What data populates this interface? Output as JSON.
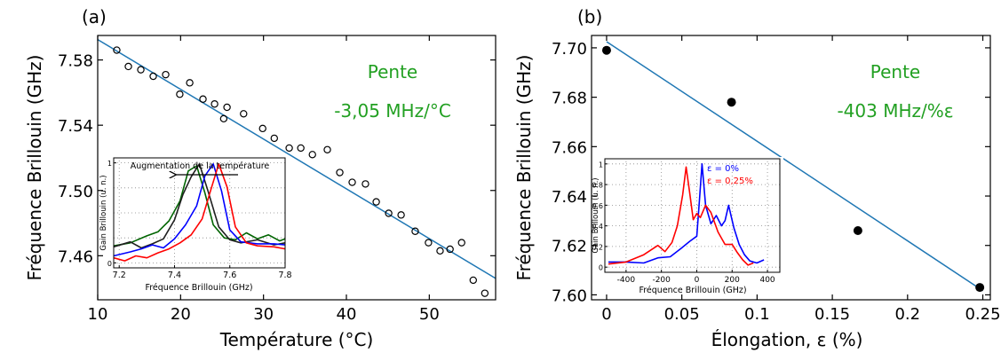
{
  "colors": {
    "fit": "#1f77b4",
    "annotation": "#22a022",
    "black": "#000000",
    "blue": "#0000ff",
    "red": "#ff0000",
    "green": "#006400",
    "gray": "#202020"
  },
  "chart_data": [
    {
      "id": "a",
      "type": "scatter",
      "panel_label": "(a)",
      "xlabel": "Température (°C)",
      "ylabel": "Fréquence Brillouin (GHz)",
      "xlim": [
        10,
        58
      ],
      "ylim": [
        7.433,
        7.595
      ],
      "xticks": [
        10,
        20,
        30,
        40,
        50
      ],
      "xtick_labels": [
        "10",
        "20",
        "30",
        "40",
        "50"
      ],
      "yticks": [
        7.46,
        7.5,
        7.54,
        7.58
      ],
      "ytick_labels": [
        "7.46",
        "7.50",
        "7.54",
        "7.58"
      ],
      "marker": "open-circle",
      "grid": false,
      "annotation": [
        "Pente",
        "-3,05 MHz/°C"
      ],
      "fit": {
        "x": [
          10,
          58
        ],
        "y": [
          7.5925,
          7.4461
        ]
      },
      "points": {
        "x": [
          12.3,
          13.7,
          15.2,
          16.7,
          18.2,
          19.9,
          21.1,
          22.7,
          24.1,
          25.2,
          25.6,
          27.6,
          29.9,
          31.3,
          33.1,
          34.5,
          35.9,
          37.7,
          39.2,
          40.7,
          42.3,
          43.6,
          45.1,
          46.6,
          48.3,
          49.9,
          51.3,
          52.5,
          53.9,
          55.3,
          56.7
        ],
        "y": [
          7.586,
          7.576,
          7.574,
          7.57,
          7.571,
          7.559,
          7.566,
          7.556,
          7.553,
          7.544,
          7.551,
          7.547,
          7.538,
          7.532,
          7.526,
          7.526,
          7.522,
          7.525,
          7.511,
          7.505,
          7.504,
          7.493,
          7.486,
          7.485,
          7.475,
          7.468,
          7.463,
          7.464,
          7.468,
          7.445,
          7.437
        ]
      },
      "inset": {
        "type": "line",
        "xlabel": "Fréquence Brillouin (GHz)",
        "ylabel": "Gain Brillouin (u. n.)",
        "xlim": [
          7.18,
          7.8
        ],
        "ylim": [
          -0.05,
          1.05
        ],
        "xticks": [
          7.2,
          7.4,
          7.6,
          7.8
        ],
        "xtick_labels": [
          "7.2",
          "7.4",
          "7.6",
          "7.8"
        ],
        "yticks": [
          0,
          1
        ],
        "ytick_labels": [
          "0",
          "1"
        ],
        "grid": true,
        "arrow_label": "Augmentation de la température",
        "series": [
          {
            "color": "#006400",
            "x": [
              7.18,
              7.24,
              7.3,
              7.34,
              7.38,
              7.42,
              7.45,
              7.48,
              7.51,
              7.54,
              7.58,
              7.62,
              7.66,
              7.7,
              7.74,
              7.78,
              7.8
            ],
            "y": [
              0.17,
              0.2,
              0.27,
              0.31,
              0.42,
              0.62,
              0.92,
              0.97,
              0.7,
              0.38,
              0.25,
              0.23,
              0.3,
              0.24,
              0.28,
              0.22,
              0.24
            ]
          },
          {
            "color": "#202020",
            "x": [
              7.18,
              7.24,
              7.28,
              7.32,
              7.36,
              7.4,
              7.43,
              7.46,
              7.49,
              7.52,
              7.56,
              7.6,
              7.64,
              7.7,
              7.76,
              7.8
            ],
            "y": [
              0.16,
              0.21,
              0.15,
              0.19,
              0.24,
              0.43,
              0.68,
              0.86,
              0.99,
              0.73,
              0.36,
              0.23,
              0.2,
              0.23,
              0.18,
              0.2
            ]
          },
          {
            "color": "#0000ff",
            "x": [
              7.18,
              7.24,
              7.28,
              7.32,
              7.36,
              7.4,
              7.44,
              7.48,
              7.51,
              7.54,
              7.57,
              7.6,
              7.64,
              7.7,
              7.76,
              7.8
            ],
            "y": [
              0.07,
              0.11,
              0.14,
              0.18,
              0.15,
              0.24,
              0.38,
              0.57,
              0.87,
              0.99,
              0.72,
              0.33,
              0.21,
              0.19,
              0.19,
              0.18
            ]
          },
          {
            "color": "#ff0000",
            "x": [
              7.18,
              7.22,
              7.26,
              7.3,
              7.34,
              7.38,
              7.42,
              7.46,
              7.5,
              7.53,
              7.56,
              7.59,
              7.62,
              7.66,
              7.7,
              7.76,
              7.8
            ],
            "y": [
              0.05,
              0.02,
              0.07,
              0.05,
              0.1,
              0.14,
              0.2,
              0.28,
              0.44,
              0.72,
              0.99,
              0.76,
              0.36,
              0.2,
              0.17,
              0.16,
              0.14
            ]
          }
        ]
      }
    },
    {
      "id": "b",
      "type": "scatter",
      "panel_label": "(b)",
      "xlabel": "Élongation, ε (%)",
      "ylabel": "Fréquence Brillouin (GHz)",
      "xlim": [
        -0.01,
        0.255
      ],
      "ylim": [
        7.598,
        7.705
      ],
      "xticks": [
        0,
        0.05,
        0.1,
        0.15,
        0.2,
        0.25
      ],
      "xtick_labels": [
        "0",
        "0.05",
        "0.1",
        "0.15",
        "0.2",
        "0.25"
      ],
      "yticks": [
        7.6,
        7.62,
        7.64,
        7.66,
        7.68,
        7.7
      ],
      "ytick_labels": [
        "7.60",
        "7.62",
        "7.64",
        "7.66",
        "7.68",
        "7.70"
      ],
      "marker": "filled-circle",
      "grid": false,
      "annotation": [
        "Pente",
        "-403 MHz/%ε"
      ],
      "fit": {
        "x": [
          0,
          0.25
        ],
        "y": [
          7.7025,
          7.6017
        ]
      },
      "points": {
        "x": [
          0,
          0.083,
          0.167,
          0.248
        ],
        "y": [
          7.699,
          7.678,
          7.626,
          7.603
        ]
      },
      "inset": {
        "type": "line",
        "xlabel": "Fréquence Brillouin (GHz)",
        "ylabel": "Gain Brillouin (u. n.)",
        "xlim": [
          -520,
          470
        ],
        "ylim": [
          -0.05,
          1.05
        ],
        "xticks": [
          -400,
          -200,
          0,
          200,
          400
        ],
        "xtick_labels": [
          "-400",
          "-200",
          "0",
          "200",
          "400"
        ],
        "yticks": [
          0,
          0.2,
          0.4,
          0.6,
          0.8,
          1
        ],
        "ytick_labels": [
          "0",
          "0.2",
          "0.4",
          "0.6",
          "0.8",
          "1"
        ],
        "grid": true,
        "series": [
          {
            "name": "ε = 0%",
            "color": "#0000ff",
            "x": [
              -500,
              -400,
              -300,
              -220,
              -150,
              -90,
              -40,
              0,
              15,
              30,
              50,
              80,
              110,
              140,
              160,
              180,
              210,
              240,
              270,
              300,
              340,
              380
            ],
            "y": [
              0.05,
              0.05,
              0.04,
              0.09,
              0.1,
              0.18,
              0.25,
              0.3,
              0.65,
              1.0,
              0.6,
              0.42,
              0.5,
              0.4,
              0.45,
              0.6,
              0.38,
              0.22,
              0.12,
              0.06,
              0.04,
              0.07
            ]
          },
          {
            "name": "ε = 0,25%",
            "color": "#ff0000",
            "x": [
              -500,
              -400,
              -300,
              -220,
              -180,
              -140,
              -110,
              -80,
              -60,
              -40,
              -20,
              0,
              20,
              50,
              80,
              120,
              160,
              200,
              230,
              260,
              290,
              320
            ],
            "y": [
              0.03,
              0.05,
              0.12,
              0.21,
              0.15,
              0.24,
              0.4,
              0.7,
              0.97,
              0.72,
              0.46,
              0.52,
              0.48,
              0.6,
              0.53,
              0.34,
              0.22,
              0.22,
              0.14,
              0.07,
              0.02,
              0.04
            ]
          }
        ]
      }
    }
  ]
}
